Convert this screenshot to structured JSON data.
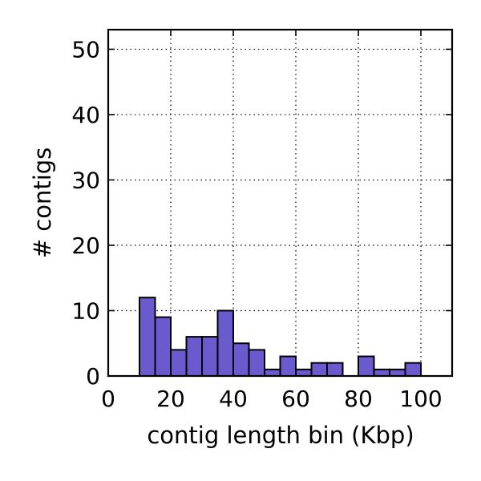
{
  "chart_data": {
    "type": "bar",
    "title": "",
    "xlabel": "contig length bin (Kbp)",
    "ylabel": "# contigs",
    "xlim": [
      0,
      110
    ],
    "ylim": [
      0,
      53
    ],
    "x_ticks": [
      0,
      20,
      40,
      60,
      80,
      100
    ],
    "y_ticks": [
      0,
      10,
      20,
      30,
      40,
      50
    ],
    "grid": true,
    "bar_color": "#6a5acd",
    "bin_width": 5,
    "bin_starts": [
      0,
      5,
      10,
      15,
      20,
      25,
      30,
      35,
      40,
      45,
      50,
      55,
      60,
      65,
      70,
      75,
      80,
      85,
      90,
      95,
      100,
      105
    ],
    "values": [
      0,
      0,
      12,
      9,
      4,
      6,
      6,
      10,
      5,
      4,
      1,
      3,
      1,
      2,
      2,
      0,
      3,
      1,
      1,
      2,
      0,
      0
    ]
  }
}
